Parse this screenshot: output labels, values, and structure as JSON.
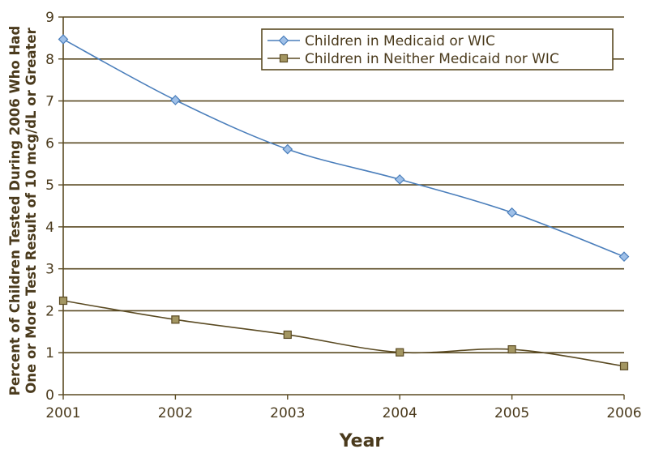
{
  "chart_data": {
    "type": "line",
    "title": "",
    "xlabel": "Year",
    "ylabel_lines": [
      "Percent of Children Tested During 2006 Who Had",
      "One or More Test Result of 10 mcg/dL or Greater"
    ],
    "x": [
      2001,
      2002,
      2003,
      2004,
      2005,
      2006
    ],
    "x_tick_labels": [
      "2001",
      "2002",
      "2003",
      "2004",
      "2005",
      "2006"
    ],
    "y_tick_labels": [
      "0",
      "1",
      "2",
      "3",
      "4",
      "5",
      "6",
      "7",
      "8",
      "9"
    ],
    "ylim": [
      0,
      9
    ],
    "grid": "horizontal",
    "legend_position": "top-right",
    "series": [
      {
        "name": "Children in Medicaid or WIC",
        "values": [
          8.47,
          7.02,
          5.85,
          5.13,
          4.34,
          3.29
        ],
        "color": "#4a7ebb",
        "marker": "diamond"
      },
      {
        "name": "Children in Neither Medicaid nor WIC",
        "values": [
          2.24,
          1.79,
          1.43,
          1.01,
          1.08,
          0.68
        ],
        "color": "#5a4a22",
        "marker": "square"
      }
    ],
    "colors": {
      "gridline": "#5a4a22",
      "axis": "#5a4a22",
      "diamond_fill": "#9fc0e8",
      "square_fill": "#a39662"
    }
  }
}
